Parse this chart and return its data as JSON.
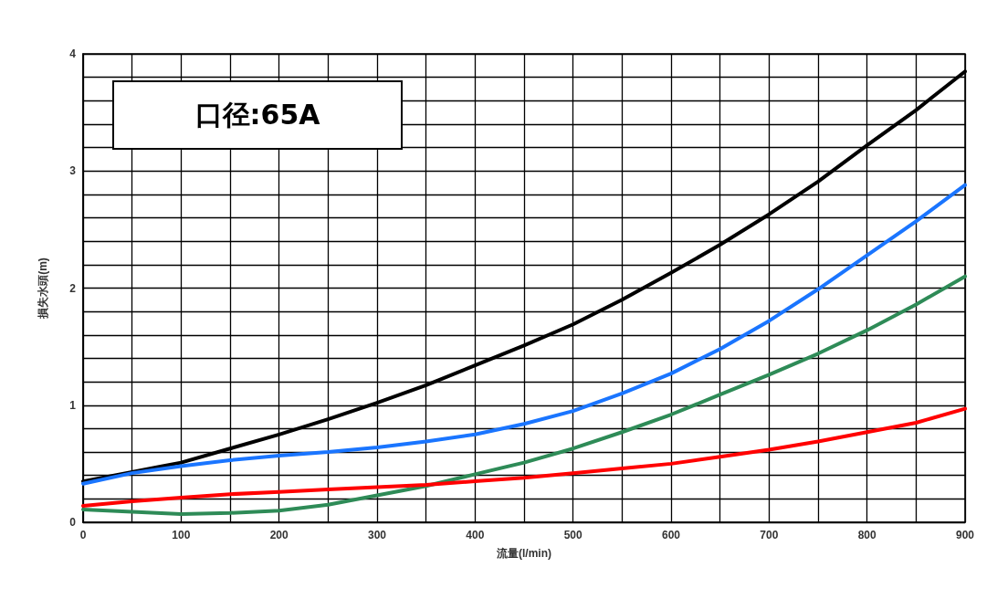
{
  "chart_data": {
    "type": "line",
    "xlabel": "流量(l/min)",
    "ylabel": "損失水頭(m)",
    "annotations": [
      "口径:65A"
    ],
    "x": [
      0,
      50,
      100,
      150,
      200,
      250,
      300,
      350,
      400,
      450,
      500,
      550,
      600,
      650,
      700,
      750,
      800,
      850,
      900
    ],
    "xlim": [
      0,
      900
    ],
    "ylim": [
      0,
      4
    ],
    "xticks": [
      0,
      {
        "value": 50,
        "label": null
      },
      100,
      {
        "value": 150,
        "label": null
      },
      200,
      {
        "value": 250,
        "label": null
      },
      300,
      {
        "value": 350,
        "label": null
      },
      400,
      {
        "value": 450,
        "label": null
      },
      500,
      {
        "value": 550,
        "label": null
      },
      600,
      {
        "value": 650,
        "label": null
      },
      700,
      {
        "value": 750,
        "label": null
      },
      800,
      {
        "value": 850,
        "label": null
      },
      900
    ],
    "yticks": [
      0,
      {
        "value": 0.2,
        "label": null
      },
      {
        "value": 0.4,
        "label": null
      },
      {
        "value": 0.6,
        "label": null
      },
      {
        "value": 0.8,
        "label": null
      },
      1,
      {
        "value": 1.2,
        "label": null
      },
      {
        "value": 1.4,
        "label": null
      },
      {
        "value": 1.6,
        "label": null
      },
      {
        "value": 1.8,
        "label": null
      },
      2,
      {
        "value": 2.2,
        "label": null
      },
      {
        "value": 2.4,
        "label": null
      },
      {
        "value": 2.6,
        "label": null
      },
      {
        "value": 2.8,
        "label": null
      },
      3,
      {
        "value": 3.2,
        "label": null
      },
      {
        "value": 3.4,
        "label": null
      },
      {
        "value": 3.6,
        "label": null
      },
      {
        "value": 3.8,
        "label": null
      },
      4
    ],
    "grid": true,
    "marker": "none",
    "line_style": "solid",
    "series": [
      {
        "color": "#000000",
        "values": [
          0.35,
          0.43,
          0.51,
          0.63,
          0.75,
          0.88,
          1.02,
          1.17,
          1.34,
          1.51,
          1.69,
          1.9,
          2.13,
          2.37,
          2.63,
          2.91,
          3.22,
          3.52,
          3.85
        ]
      },
      {
        "color": "#1a75ff",
        "values": [
          0.33,
          0.42,
          0.48,
          0.53,
          0.57,
          0.6,
          0.64,
          0.69,
          0.75,
          0.84,
          0.95,
          1.1,
          1.27,
          1.48,
          1.72,
          1.99,
          2.28,
          2.57,
          2.88
        ]
      },
      {
        "color": "#2e8b57",
        "values": [
          0.11,
          0.09,
          0.07,
          0.08,
          0.1,
          0.15,
          0.23,
          0.31,
          0.41,
          0.51,
          0.63,
          0.77,
          0.92,
          1.09,
          1.26,
          1.44,
          1.64,
          1.86,
          2.1
        ]
      },
      {
        "color": "#ff0000",
        "values": [
          0.14,
          0.18,
          0.21,
          0.24,
          0.26,
          0.28,
          0.3,
          0.32,
          0.35,
          0.38,
          0.42,
          0.46,
          0.5,
          0.56,
          0.62,
          0.69,
          0.77,
          0.85,
          0.97
        ]
      }
    ]
  }
}
